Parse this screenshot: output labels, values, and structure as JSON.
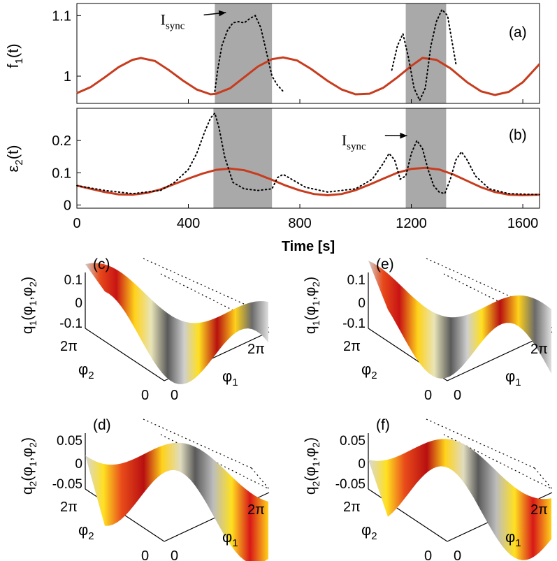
{
  "colors": {
    "line": "#c83c1e",
    "dotted": "#000000",
    "shade": "#a9a9a9",
    "surface_high": "#d01818",
    "surface_mid": "#ffe020",
    "surface_low": "#555555"
  },
  "panels_top": {
    "xlabel": "Time [s]",
    "xticks": [
      "0",
      "400",
      "800",
      "1200",
      "1600"
    ]
  },
  "chart_data": [
    {
      "id": "a",
      "type": "line",
      "panel_label": "(a)",
      "ylabel_base": "f",
      "ylabel_sub": "1",
      "ylabel_tail": "(t)",
      "xlim": [
        0,
        1660
      ],
      "ylim": [
        0.955,
        1.12
      ],
      "yticks": [
        "1",
        "1.1"
      ],
      "ytick_values": [
        1.0,
        1.1
      ],
      "shaded_intervals": [
        [
          495,
          700
        ],
        [
          1180,
          1325
        ]
      ],
      "annotation": {
        "base": "I",
        "sub": "sync",
        "text_x": 300,
        "text_y": 1.085,
        "arrow_to_x": 535,
        "arrow_to_y": 1.105
      },
      "series": [
        {
          "style": "solid",
          "x": [
            0,
            50,
            100,
            150,
            200,
            230,
            280,
            330,
            380,
            430,
            480,
            500,
            550,
            600,
            650,
            700,
            740,
            790,
            840,
            900,
            950,
            1000,
            1050,
            1100,
            1150,
            1200,
            1240,
            1290,
            1340,
            1400,
            1450,
            1500,
            1550,
            1600,
            1660
          ],
          "y": [
            0.972,
            0.982,
            0.998,
            1.015,
            1.027,
            1.03,
            1.025,
            1.01,
            0.993,
            0.978,
            0.97,
            0.971,
            0.98,
            0.998,
            1.016,
            1.028,
            1.031,
            1.026,
            1.012,
            0.992,
            0.978,
            0.97,
            0.971,
            0.981,
            0.998,
            1.017,
            1.03,
            1.027,
            1.013,
            0.99,
            0.975,
            0.969,
            0.974,
            0.99,
            1.02
          ]
        },
        {
          "style": "dotted",
          "x": [
            495,
            505,
            520,
            540,
            560,
            580,
            600,
            620,
            640,
            660,
            680,
            700,
            720,
            740
          ],
          "y": [
            0.975,
            1.01,
            1.05,
            1.075,
            1.088,
            1.09,
            1.088,
            1.095,
            1.1,
            1.08,
            1.04,
            1.0,
            0.985,
            0.975
          ]
        },
        {
          "style": "dotted",
          "x": [
            1130,
            1150,
            1170,
            1190,
            1210,
            1230,
            1250,
            1270,
            1290,
            1310,
            1330,
            1345,
            1360
          ],
          "y": [
            1.01,
            1.05,
            1.07,
            1.03,
            0.98,
            0.96,
            0.98,
            1.05,
            1.09,
            1.11,
            1.1,
            1.06,
            1.02
          ]
        }
      ]
    },
    {
      "id": "b",
      "type": "line",
      "panel_label": "(b)",
      "ylabel_base": "ε",
      "ylabel_sub": "2",
      "ylabel_tail": "(t)",
      "xlim": [
        0,
        1660
      ],
      "ylim": [
        -0.01,
        0.3
      ],
      "yticks": [
        "0",
        "0.1",
        "0.2"
      ],
      "ytick_values": [
        0.0,
        0.1,
        0.2
      ],
      "shaded_intervals": [
        [
          490,
          700
        ],
        [
          1180,
          1325
        ]
      ],
      "annotation": {
        "base": "I",
        "sub": "sync",
        "text_x": 950,
        "text_y": 0.185,
        "arrow_to_x": 1185,
        "arrow_to_y": 0.215
      },
      "series": [
        {
          "style": "solid",
          "x": [
            0,
            50,
            100,
            150,
            200,
            250,
            300,
            350,
            400,
            450,
            500,
            550,
            600,
            650,
            700,
            750,
            800,
            850,
            900,
            950,
            1000,
            1050,
            1100,
            1150,
            1200,
            1250,
            1300,
            1350,
            1400,
            1450,
            1500,
            1550,
            1600,
            1660
          ],
          "y": [
            0.06,
            0.05,
            0.04,
            0.033,
            0.032,
            0.037,
            0.048,
            0.065,
            0.082,
            0.097,
            0.109,
            0.113,
            0.108,
            0.095,
            0.078,
            0.06,
            0.045,
            0.034,
            0.03,
            0.034,
            0.046,
            0.063,
            0.082,
            0.1,
            0.112,
            0.115,
            0.11,
            0.095,
            0.075,
            0.055,
            0.04,
            0.032,
            0.03,
            0.032
          ]
        },
        {
          "style": "dotted",
          "x": [
            0,
            100,
            200,
            300,
            350,
            400,
            430,
            460,
            480,
            495,
            510,
            530,
            560,
            600,
            650,
            700,
            720,
            740,
            770,
            820,
            900,
            1000,
            1060,
            1100,
            1120,
            1140,
            1160,
            1180,
            1200,
            1220,
            1240,
            1260,
            1280,
            1300,
            1320,
            1340,
            1360,
            1380,
            1400,
            1430,
            1480,
            1550,
            1660
          ],
          "y": [
            0.06,
            0.045,
            0.035,
            0.045,
            0.07,
            0.11,
            0.16,
            0.23,
            0.27,
            0.285,
            0.24,
            0.15,
            0.07,
            0.05,
            0.045,
            0.05,
            0.085,
            0.095,
            0.08,
            0.055,
            0.04,
            0.05,
            0.08,
            0.13,
            0.16,
            0.14,
            0.08,
            0.09,
            0.16,
            0.2,
            0.175,
            0.11,
            0.06,
            0.04,
            0.035,
            0.08,
            0.14,
            0.165,
            0.14,
            0.09,
            0.05,
            0.035,
            0.032
          ]
        }
      ]
    },
    {
      "id": "c",
      "type": "surface",
      "panel_label": "(c)",
      "zlabel": {
        "base": "q",
        "sub1": "1",
        "open": "(φ",
        "sub2": "1",
        "comma": ",φ",
        "sub3": "2",
        "close": ")"
      },
      "zticks": [
        "0.1",
        "0",
        "-0.1"
      ],
      "axis_phi2": {
        "base": "φ",
        "sub": "2",
        "tick_max": "2π",
        "tick_min": "0"
      },
      "axis_phi1": {
        "base": "φ",
        "sub": "1",
        "tick_max": "2π",
        "tick_min": "0"
      }
    },
    {
      "id": "e",
      "type": "surface",
      "panel_label": "(e)",
      "zlabel": {
        "base": "q",
        "sub1": "1",
        "open": "(φ",
        "sub2": "1",
        "comma": ",φ",
        "sub3": "2",
        "close": ")"
      },
      "zticks": [
        "0.1",
        "0",
        "-0.1"
      ],
      "axis_phi2": {
        "base": "φ",
        "sub": "2",
        "tick_max": "2π",
        "tick_min": "0"
      },
      "axis_phi1": {
        "base": "φ",
        "sub": "1",
        "tick_max": "2π",
        "tick_min": "0"
      }
    },
    {
      "id": "d",
      "type": "surface",
      "panel_label": "(d)",
      "zlabel": {
        "base": "q",
        "sub1": "2",
        "open": "(φ",
        "sub2": "1",
        "comma": ",φ",
        "sub3": "2",
        "close": ")"
      },
      "zticks": [
        "0.05",
        "0",
        "-0.05"
      ],
      "axis_phi2": {
        "base": "φ",
        "sub": "2",
        "tick_max": "2π",
        "tick_min": "0"
      },
      "axis_phi1": {
        "base": "φ",
        "sub": "1",
        "tick_max": "2π",
        "tick_min": "0"
      }
    },
    {
      "id": "f",
      "type": "surface",
      "panel_label": "(f)",
      "zlabel": {
        "base": "q",
        "sub1": "2",
        "open": "(φ",
        "sub2": "1",
        "comma": ",φ",
        "sub3": "2",
        "close": ")"
      },
      "zticks": [
        "0.05",
        "0",
        "-0.05"
      ],
      "axis_phi2": {
        "base": "φ",
        "sub": "2",
        "tick_max": "2π",
        "tick_min": "0"
      },
      "axis_phi1": {
        "base": "φ",
        "sub": "1",
        "tick_max": "2π",
        "tick_min": "0"
      }
    }
  ]
}
